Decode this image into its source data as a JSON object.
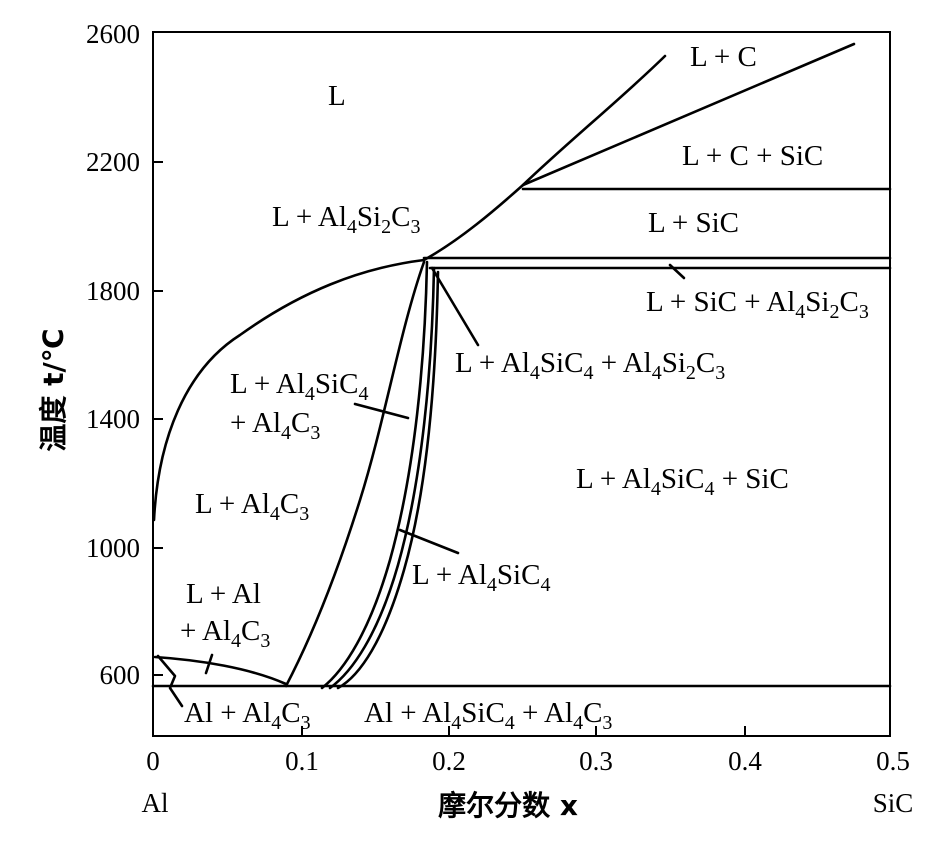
{
  "chart_data": {
    "type": "phase-diagram",
    "title": "",
    "xlabel": "摩尔分数 x",
    "ylabel": "温度 t/℃",
    "xlim": [
      0,
      0.5
    ],
    "ylim": [
      360,
      2600
    ],
    "x_ticks": [
      "0",
      "0.1",
      "0.2",
      "0.3",
      "0.4",
      "0.5"
    ],
    "y_ticks": [
      "600",
      "1000",
      "1400",
      "1800",
      "2200",
      "2600"
    ],
    "end_labels": {
      "left": "Al",
      "right": "SiC"
    },
    "regions": {
      "L": "L",
      "L_C": "L + C",
      "L_C_SiC": "L + C + SiC",
      "L_SiC": "L + SiC",
      "L_SiC_Al4Si2C3": [
        "L + SiC + Al",
        "4",
        "Si",
        "2",
        "C",
        "3"
      ],
      "L_Al4Si2C3": [
        "L + Al",
        "4",
        "Si",
        "2",
        "C",
        "3"
      ],
      "L_Al4SiC4_Al4Si2C3": [
        "L + Al",
        "4",
        "SiC",
        "4",
        " + Al",
        "4",
        "Si",
        "2",
        "C",
        "3"
      ],
      "L_Al4SiC4_Al4C3_line1": [
        "L + Al",
        "4",
        "SiC",
        "4"
      ],
      "L_Al4SiC4_Al4C3_line2": [
        "+ Al",
        "4",
        "C",
        "3"
      ],
      "L_Al4C3": [
        "L + Al",
        "4",
        "C",
        "3"
      ],
      "L_Al4SiC4_SiC": [
        "L + Al",
        "4",
        "SiC",
        "4",
        " + SiC"
      ],
      "L_Al4SiC4": [
        "L + Al",
        "4",
        "SiC",
        "4"
      ],
      "L_Al_Al4C3_line1": "L + Al",
      "L_Al_Al4C3_line2": [
        "+ Al",
        "4",
        "C",
        "3"
      ],
      "Al_Al4C3": [
        "Al + Al",
        "4",
        "C",
        "3"
      ],
      "Al_Al4SiC4_Al4C3": [
        "Al + Al",
        "4",
        "SiC",
        "4",
        " + Al",
        "4",
        "C",
        "3"
      ]
    },
    "isotherms": [
      {
        "name": "eutectic",
        "t": 577,
        "x_range": [
          0,
          0.5
        ]
      },
      {
        "name": "peritectic-Al4Si2C3",
        "t": 1880,
        "x_range": [
          0.19,
          0.5
        ]
      },
      {
        "name": "Al4Si2C3-decomposition",
        "t": 1915,
        "x_range": [
          0.19,
          0.5
        ]
      },
      {
        "name": "SiC-C",
        "t": 2110,
        "x_range": [
          0.25,
          0.5
        ]
      }
    ],
    "liquidus_points": [
      {
        "x": 0.0,
        "t": 1080
      },
      {
        "x": 0.02,
        "t": 1410
      },
      {
        "x": 0.06,
        "t": 1640
      },
      {
        "x": 0.12,
        "t": 1820
      },
      {
        "x": 0.182,
        "t": 1915
      },
      {
        "x": 0.25,
        "t": 2120
      },
      {
        "x": 0.345,
        "t": 2520
      }
    ]
  }
}
